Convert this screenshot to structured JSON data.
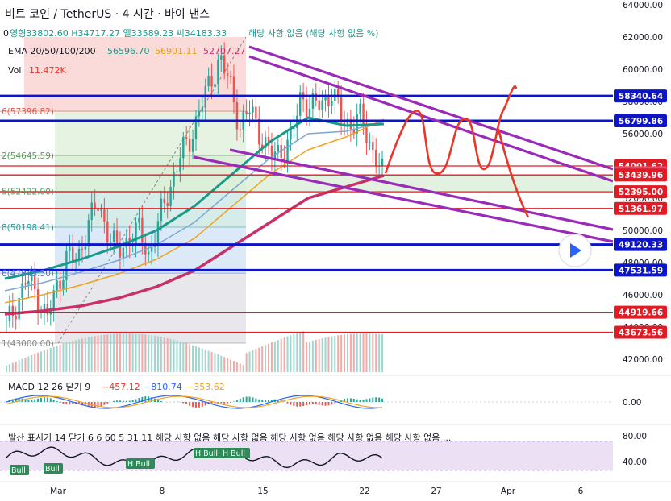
{
  "header": {
    "title": "비트 코인 / TetherUS · 4 시간 · 바이 낸스",
    "ohlc_prefix": "0",
    "ohlc": "영형33802.60 H34717.27 엘33589.23 씨34183.33",
    "ohlc_note": "해당 사항 없음 (해당 사항 없음 %)",
    "ema_label": "EMA 20/50/100/200",
    "ema_values": [
      "56596.70",
      "56901.11",
      "52707.27"
    ],
    "vol_label": "Vol",
    "vol_value": "11.472K"
  },
  "price_axis": {
    "ticks": [
      "64000.00",
      "62000.00",
      "60000.00",
      "58000.00",
      "56000.00",
      "54000.00",
      "52000.00",
      "50000.00",
      "48000.00",
      "46000.00",
      "44000.00",
      "42000.00"
    ],
    "labels": [
      {
        "text": "58340.64",
        "color": "#0c16c8",
        "value": 58340.64
      },
      {
        "text": "56799.86",
        "color": "#0c16c8",
        "value": 56799.86
      },
      {
        "text": "54001.62",
        "color": "#e01b24",
        "value": 54001.62
      },
      {
        "text": "53582.13",
        "color": "#e84a6a",
        "value": 53582.13
      },
      {
        "text": "53439.96",
        "color": "#e01b24",
        "value": 53439.96
      },
      {
        "text": "52395.00",
        "color": "#e01b24",
        "value": 52395.0
      },
      {
        "text": "51361.97",
        "color": "#e01b24",
        "value": 51361.97
      },
      {
        "text": "49120.33",
        "color": "#0c16c8",
        "value": 49120.33
      },
      {
        "text": "47531.59",
        "color": "#0c16c8",
        "value": 47531.59
      },
      {
        "text": "44919.66",
        "color": "#e01b24",
        "value": 44919.66
      },
      {
        "text": "43673.56",
        "color": "#e01b24",
        "value": 43673.56
      }
    ]
  },
  "fib_labels": [
    {
      "text": "6(57396.82)",
      "value": 57396.82,
      "color": "#e05a4a"
    },
    {
      "text": "2(54645.59)",
      "value": 54645.59,
      "color": "#5a9a5a"
    },
    {
      "text": "5(52422.00)",
      "value": 52422.0,
      "color": "#5a9a5a"
    },
    {
      "text": "8(50198.41)",
      "value": 50198.41,
      "color": "#2a9a9a"
    },
    {
      "text": "6(47343.50)",
      "value": 47343.5,
      "color": "#4a7ac8"
    },
    {
      "text": "1(43000.00)",
      "value": 43000.0,
      "color": "#888888"
    }
  ],
  "time_axis": [
    "Mar",
    "8",
    "15",
    "22",
    "27",
    "Apr",
    "6"
  ],
  "macd": {
    "label": "MACD 12 26 닫기 9",
    "values": [
      "−457.12",
      "−810.74",
      "−353.62"
    ],
    "axis": [
      "0.00"
    ]
  },
  "divergence": {
    "label": "발산 표시기 14 닫기 6 6 60 5 31.11 해당 사항 없음 해당 사항 없음 해당 사항 없음 해당 사항 없음 해당 사항 없음 ...",
    "axis": [
      "80.00",
      "40.00"
    ],
    "tags": [
      "Bull",
      "Bull",
      "H Bull",
      "H Bull",
      "H Bull"
    ]
  },
  "chart_data": {
    "type": "candlestick",
    "symbol": "비트 코인 / TetherUS",
    "interval": "4 시간",
    "ylim": [
      41500,
      64500
    ],
    "closes_approx": [
      44000,
      45500,
      47000,
      46000,
      44500,
      46500,
      48500,
      48000,
      50500,
      51500,
      50000,
      48500,
      49500,
      50000,
      48500,
      50500,
      52500,
      54500,
      55500,
      57500,
      59000,
      60800,
      59000,
      56500,
      57500,
      56000,
      54500,
      55000,
      55500,
      58500,
      57500,
      58000,
      58500,
      57000,
      56500,
      57000,
      55000,
      53500
    ],
    "ema_series": [
      {
        "values": [
          47000,
          47500,
          48200,
          49000,
          50000,
          51500,
          53500,
          55500,
          57000,
          56500,
          56600
        ]
      },
      {
        "values": [
          45500,
          46000,
          46600,
          47300,
          48200,
          49500,
          51500,
          53500,
          55000,
          55800,
          56900
        ]
      },
      {
        "values": [
          44800,
          45000,
          45300,
          45800,
          46500,
          47500,
          49000,
          50500,
          52000,
          52700,
          53400
        ]
      }
    ],
    "horizontal_levels": [
      58340.64,
      56799.86,
      54001.62,
      53439.96,
      52395.0,
      51361.97,
      49120.33,
      47531.59,
      44919.66,
      43673.56
    ]
  }
}
